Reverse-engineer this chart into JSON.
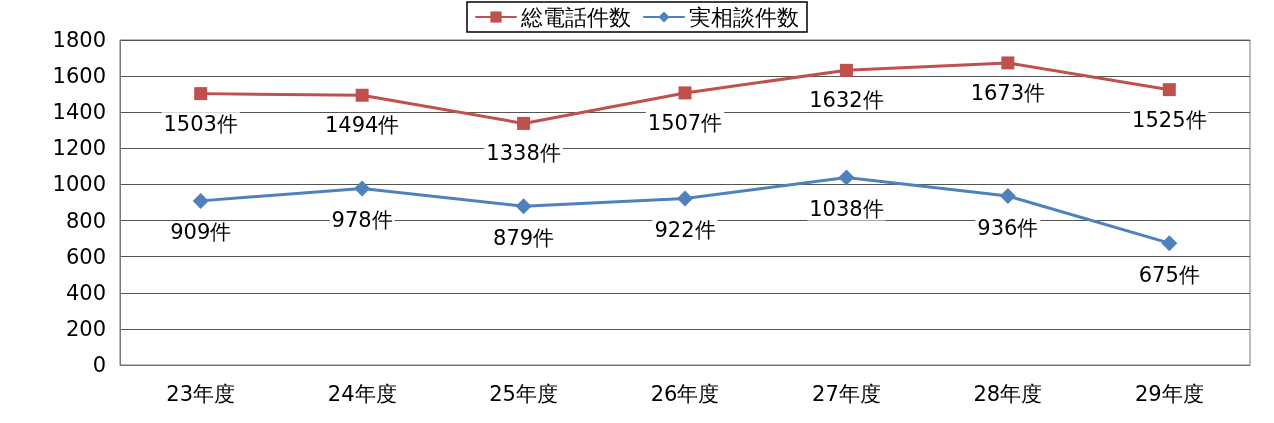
{
  "chart_data": {
    "type": "line",
    "categories": [
      "23年度",
      "24年度",
      "25年度",
      "26年度",
      "27年度",
      "28年度",
      "29年度"
    ],
    "series": [
      {
        "name": "総電話件数",
        "color": "#c0504d",
        "marker": "square",
        "values": [
          1503,
          1494,
          1338,
          1507,
          1632,
          1673,
          1525
        ],
        "value_labels": [
          "1503件",
          "1494件",
          "1338件",
          "1507件",
          "1632件",
          "1673件",
          "1525件"
        ]
      },
      {
        "name": "実相談件数",
        "color": "#4f81bd",
        "marker": "diamond",
        "values": [
          909,
          978,
          879,
          922,
          1038,
          936,
          675
        ],
        "value_labels": [
          "909件",
          "978件",
          "879件",
          "922件",
          "1038件",
          "936件",
          "675件"
        ]
      }
    ],
    "ylim": [
      0,
      1800
    ],
    "yticks": [
      0,
      200,
      400,
      600,
      800,
      1000,
      1200,
      1400,
      1600,
      1800
    ],
    "grid": "y",
    "legend": "top"
  }
}
